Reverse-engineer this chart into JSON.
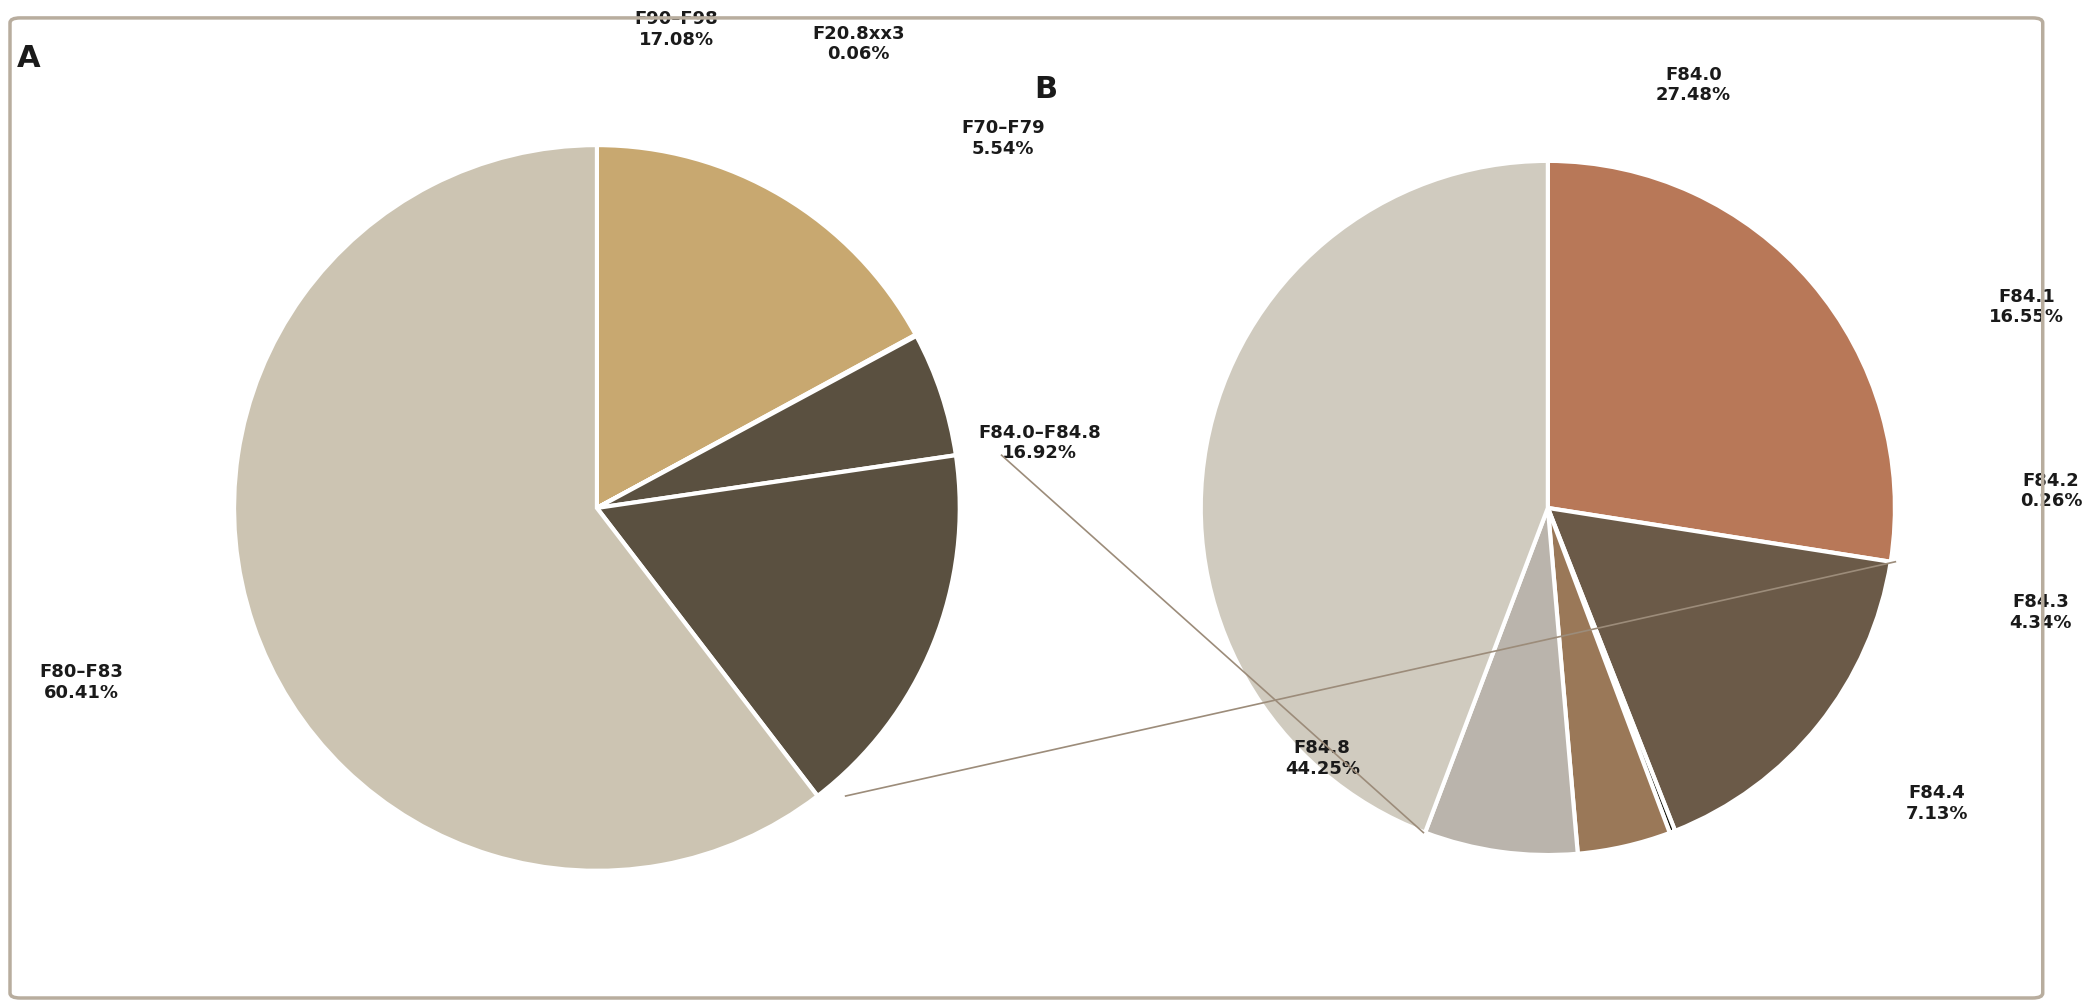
{
  "chart_A": {
    "labels": [
      "F80–F83",
      "F90–F98",
      "F20.8xx3",
      "F70–F79",
      "F84.0–F84.8"
    ],
    "values": [
      60.41,
      17.08,
      0.06,
      5.54,
      16.92
    ],
    "colors": [
      "#ccc4b2",
      "#c8a870",
      "#d4c84e",
      "#5a5040",
      "#5a5040"
    ],
    "label_texts": [
      "F80–F83\n60.41%",
      "F90–F98\n17.08%",
      "F20.8xx3\n0.06%",
      "F70–F79\n5.54%",
      "F84.0–F84.8\n16.92%"
    ]
  },
  "chart_B": {
    "labels": [
      "F84.0",
      "F84.1",
      "F84.2",
      "F84.3",
      "F84.4",
      "F84.8"
    ],
    "values": [
      27.48,
      16.55,
      0.26,
      4.34,
      7.13,
      44.25
    ],
    "colors": [
      "#b87858",
      "#6b5c4a",
      "#0a0805",
      "#a07860",
      "#bfb8b0",
      "#d0cbbf"
    ],
    "label_texts": [
      "F84.0\n27.48%",
      "F84.1\n16.55%",
      "F84.2\n0.26%",
      "F84.3\n4.34%",
      "F84.4\n7.13%",
      "F84.8\n44.25%"
    ]
  },
  "background_color": "#ffffff",
  "border_color": "#b8ad9e",
  "label_A": "A",
  "label_B": "B",
  "connection_color": "#9c8c7a",
  "wedge_edgecolor": "#ffffff",
  "fontsize_labels": 13,
  "fontsize_AB": 22
}
